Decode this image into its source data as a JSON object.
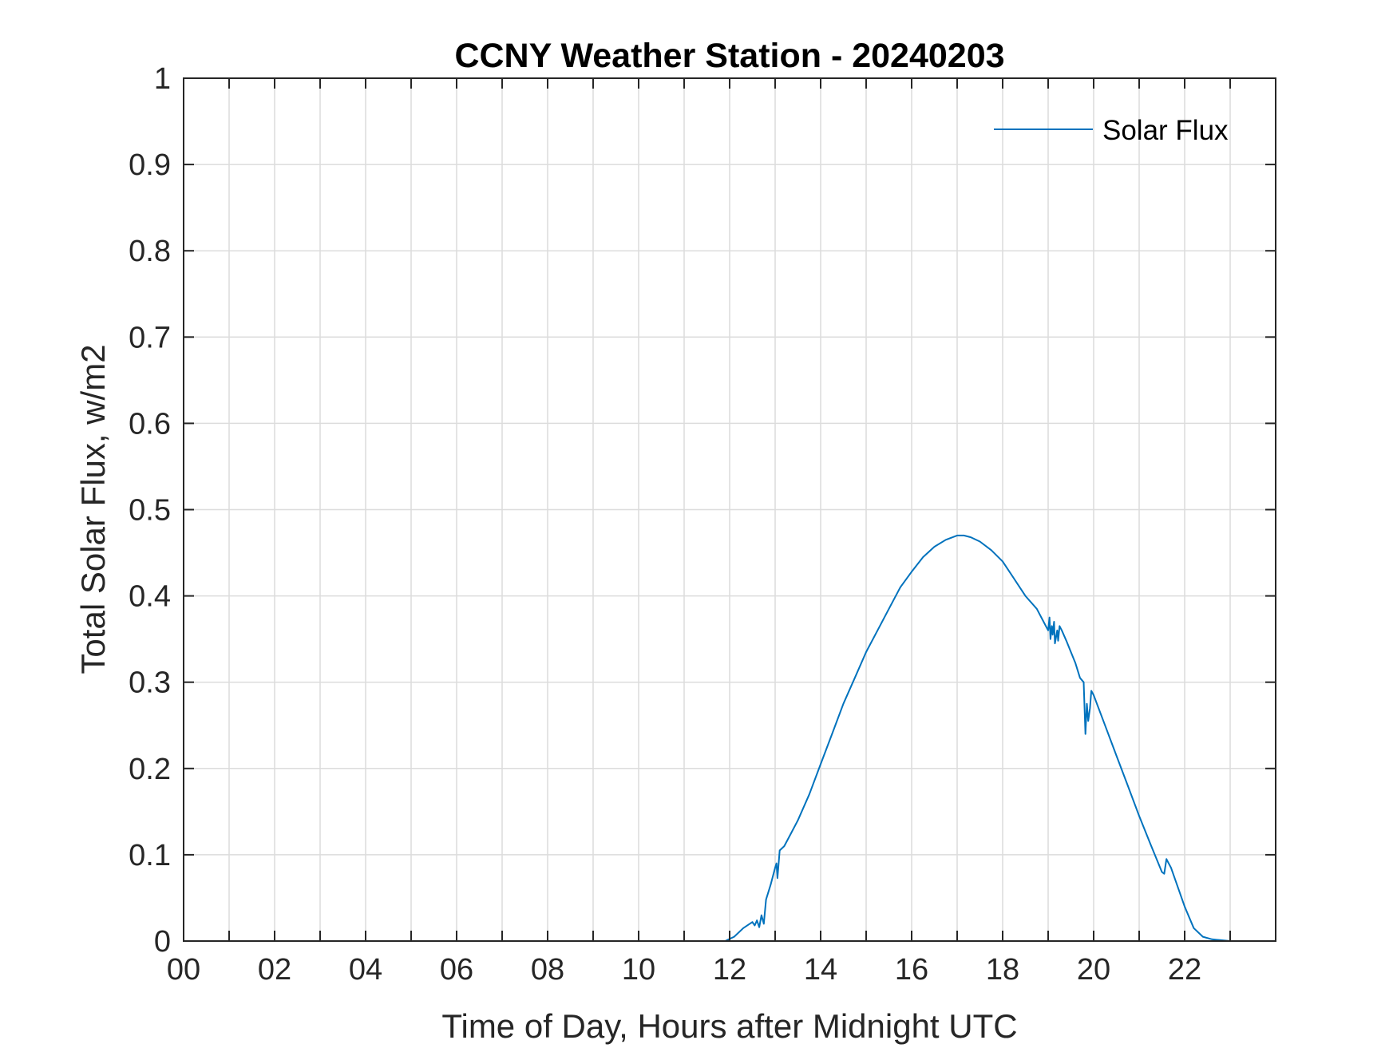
{
  "chart_data": {
    "type": "line",
    "title": "CCNY Weather Station - 20240203",
    "xlabel": "Time of Day, Hours after Midnight UTC",
    "ylabel": "Total Solar Flux, w/m2",
    "xlim": [
      0,
      24
    ],
    "ylim": [
      0,
      1
    ],
    "grid": true,
    "legend_position": "top-right",
    "x_ticks": [
      0,
      2,
      4,
      6,
      8,
      10,
      12,
      14,
      16,
      18,
      20,
      22
    ],
    "x_tick_labels": [
      "00",
      "02",
      "04",
      "06",
      "08",
      "10",
      "12",
      "14",
      "16",
      "18",
      "20",
      "22"
    ],
    "y_ticks": [
      0,
      0.1,
      0.2,
      0.3,
      0.4,
      0.5,
      0.6,
      0.7,
      0.8,
      0.9,
      1
    ],
    "y_tick_labels": [
      "0",
      "0.1",
      "0.2",
      "0.3",
      "0.4",
      "0.5",
      "0.6",
      "0.7",
      "0.8",
      "0.9",
      "1"
    ],
    "series": [
      {
        "name": "Solar Flux",
        "color": "#0072BD",
        "x": [
          0,
          11.5,
          11.9,
          12.1,
          12.3,
          12.5,
          12.55,
          12.6,
          12.65,
          12.7,
          12.75,
          12.8,
          12.9,
          13.0,
          13.03,
          13.05,
          13.1,
          13.2,
          13.35,
          13.5,
          13.75,
          14.0,
          14.25,
          14.5,
          14.75,
          15.0,
          15.25,
          15.5,
          15.75,
          16.0,
          16.25,
          16.5,
          16.75,
          17.0,
          17.15,
          17.3,
          17.5,
          17.75,
          18.0,
          18.25,
          18.5,
          18.75,
          18.9,
          19.0,
          19.03,
          19.05,
          19.08,
          19.1,
          19.13,
          19.15,
          19.2,
          19.22,
          19.25,
          19.3,
          19.4,
          19.5,
          19.6,
          19.7,
          19.78,
          19.8,
          19.82,
          19.85,
          19.88,
          19.92,
          19.95,
          20.0,
          20.25,
          20.5,
          20.75,
          21.0,
          21.25,
          21.5,
          21.55,
          21.6,
          21.65,
          21.7,
          21.8,
          22.0,
          22.2,
          22.4,
          22.6,
          22.8,
          23.0,
          24.0
        ],
        "y": [
          0,
          0,
          0,
          0.005,
          0.015,
          0.022,
          0.018,
          0.024,
          0.016,
          0.03,
          0.02,
          0.048,
          0.065,
          0.085,
          0.09,
          0.073,
          0.105,
          0.11,
          0.125,
          0.14,
          0.17,
          0.205,
          0.24,
          0.275,
          0.305,
          0.335,
          0.36,
          0.385,
          0.41,
          0.428,
          0.445,
          0.457,
          0.465,
          0.47,
          0.47,
          0.468,
          0.463,
          0.453,
          0.44,
          0.42,
          0.4,
          0.385,
          0.37,
          0.36,
          0.375,
          0.35,
          0.365,
          0.355,
          0.37,
          0.345,
          0.36,
          0.348,
          0.365,
          0.36,
          0.348,
          0.335,
          0.322,
          0.305,
          0.3,
          0.27,
          0.24,
          0.275,
          0.255,
          0.27,
          0.29,
          0.285,
          0.25,
          0.215,
          0.18,
          0.145,
          0.112,
          0.08,
          0.078,
          0.095,
          0.09,
          0.085,
          0.07,
          0.04,
          0.015,
          0.005,
          0.002,
          0.001,
          0,
          0
        ]
      }
    ]
  }
}
